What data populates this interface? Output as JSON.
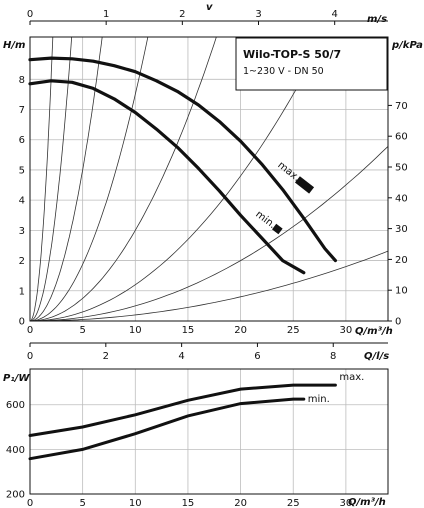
{
  "chart_data": [
    {
      "type": "line",
      "title": "Wilo-TOP-S 50/7",
      "subtitle": "1~230 V - DN 50",
      "xlabel": "Q/m³/h",
      "ylabel": "H/m",
      "y2label": "p/kPa",
      "top_axis_label": "v",
      "top_axis_unit": "m/s",
      "top_axis_ticks": [
        "0",
        "1",
        "2",
        "3",
        "4"
      ],
      "xlim": [
        0,
        34
      ],
      "ylim": [
        0,
        9.4
      ],
      "xticks": [
        "0",
        "5",
        "10",
        "15",
        "20",
        "25",
        "30"
      ],
      "yticks": [
        "0",
        "1",
        "2",
        "3",
        "4",
        "5",
        "6",
        "7",
        "8"
      ],
      "y2ticks": [
        "0",
        "10",
        "20",
        "30",
        "40",
        "50",
        "60",
        "70"
      ],
      "grid": true,
      "series": [
        {
          "name": "max.",
          "x": [
            0,
            2,
            4,
            6,
            8,
            10,
            12,
            14,
            16,
            18,
            20,
            22,
            24,
            26,
            28,
            29
          ],
          "y": [
            8.65,
            8.7,
            8.68,
            8.6,
            8.45,
            8.25,
            7.95,
            7.6,
            7.15,
            6.6,
            5.95,
            5.2,
            4.35,
            3.4,
            2.4,
            2.0
          ]
        },
        {
          "name": "min.",
          "x": [
            0,
            2,
            4,
            6,
            8,
            10,
            12,
            14,
            16,
            18,
            20,
            22,
            24,
            26
          ],
          "y": [
            7.85,
            7.95,
            7.9,
            7.7,
            7.35,
            6.9,
            6.35,
            5.75,
            5.05,
            4.3,
            3.5,
            2.75,
            2.0,
            1.6
          ]
        }
      ],
      "system_curve_coefficients": [
        0.002,
        0.005,
        0.012,
        0.03,
        0.075,
        0.2,
        0.6,
        2.0
      ]
    },
    {
      "type": "line",
      "xlabel": "Q/m³/h",
      "ylabel": "P₁/W",
      "top_axis_unit": "Q/l/s",
      "top_axis_ticks": [
        "0",
        "2",
        "4",
        "6",
        "8"
      ],
      "xlim": [
        0,
        34
      ],
      "ylim": [
        200,
        760
      ],
      "xticks": [
        "0",
        "5",
        "10",
        "15",
        "20",
        "25",
        "30"
      ],
      "yticks": [
        "200",
        "400",
        "600"
      ],
      "grid": true,
      "series": [
        {
          "name": "max.",
          "x": [
            0,
            5,
            10,
            15,
            20,
            25,
            29
          ],
          "y": [
            462,
            500,
            555,
            620,
            670,
            688,
            688
          ]
        },
        {
          "name": "min.",
          "x": [
            0,
            5,
            10,
            15,
            20,
            25,
            26
          ],
          "y": [
            358,
            400,
            470,
            550,
            605,
            625,
            625
          ]
        }
      ]
    }
  ]
}
